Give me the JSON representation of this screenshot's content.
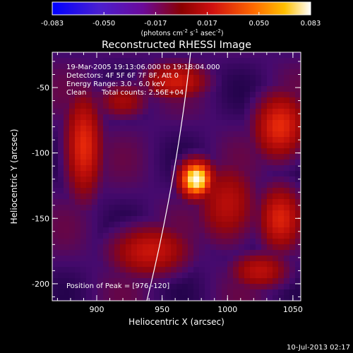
{
  "colorbar": {
    "ticks": [
      "-0.083",
      "-0.050",
      "-0.017",
      "0.017",
      "0.050",
      "0.083"
    ],
    "units_main": "(photons cm",
    "units_exp1": "-2",
    "units_mid": " s",
    "units_exp2": "-1",
    "units_asec": " asec",
    "units_exp3": "-2",
    "units_close": ")"
  },
  "chart_data": {
    "type": "heatmap",
    "title": "Reconstructed RHESSI Image",
    "xlabel": "Heliocentric X (arcsec)",
    "ylabel": "Heliocentric Y (arcsec)",
    "xlim": [
      866,
      1056
    ],
    "ylim": [
      -213,
      -23
    ],
    "xticks": [
      900,
      950,
      1000,
      1050
    ],
    "yticks": [
      -50,
      -100,
      -150,
      -200
    ],
    "color_range": [
      -0.083,
      0.083
    ],
    "colormap": "red-temperature",
    "info_lines": [
      "19-Mar-2005 19:13:06.000 to 19:18:04.000",
      "Detectors: 4F 5F 6F 7F 8F, Att 0",
      "Energy Range: 3.0 - 6.0 keV"
    ],
    "clean_label": "Clean",
    "total_counts": "Total counts: 2.56E+04",
    "peak": {
      "x": 976,
      "y": -120,
      "label": "Position of Peak = [976,-120]"
    },
    "sources": [
      {
        "x": 976,
        "y": -120,
        "level": 1.0,
        "sx": 9,
        "sy": 10
      },
      {
        "x": 890,
        "y": -95,
        "level": 0.55,
        "sx": 10,
        "sy": 28
      },
      {
        "x": 1040,
        "y": -80,
        "level": 0.55,
        "sx": 14,
        "sy": 18
      },
      {
        "x": 1040,
        "y": -150,
        "level": 0.5,
        "sx": 12,
        "sy": 18
      },
      {
        "x": 960,
        "y": -45,
        "level": 0.45,
        "sx": 18,
        "sy": 10
      },
      {
        "x": 1000,
        "y": -140,
        "level": 0.4,
        "sx": 16,
        "sy": 22
      },
      {
        "x": 940,
        "y": -175,
        "level": 0.45,
        "sx": 22,
        "sy": 14
      },
      {
        "x": 1025,
        "y": -190,
        "level": 0.4,
        "sx": 16,
        "sy": 10
      },
      {
        "x": 920,
        "y": -60,
        "level": 0.35,
        "sx": 14,
        "sy": 10
      }
    ],
    "background_level": 0.2
  },
  "footer": {
    "date": "10-Jul-2013 02:17"
  }
}
